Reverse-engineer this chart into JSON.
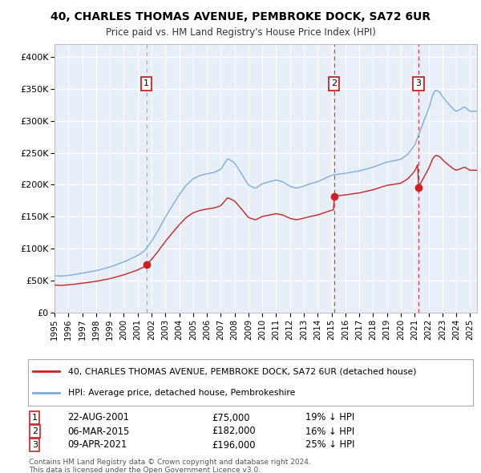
{
  "title": "40, CHARLES THOMAS AVENUE, PEMBROKE DOCK, SA72 6UR",
  "subtitle": "Price paid vs. HM Land Registry's House Price Index (HPI)",
  "legend_line1": "40, CHARLES THOMAS AVENUE, PEMBROKE DOCK, SA72 6UR (detached house)",
  "legend_line2": "HPI: Average price, detached house, Pembrokeshire",
  "footnote1": "Contains HM Land Registry data © Crown copyright and database right 2024.",
  "footnote2": "This data is licensed under the Open Government Licence v3.0.",
  "table_rows": [
    {
      "num": "1",
      "date": "22-AUG-2001",
      "price": "£75,000",
      "info": "19% ↓ HPI"
    },
    {
      "num": "2",
      "date": "06-MAR-2015",
      "price": "£182,000",
      "info": "16% ↓ HPI"
    },
    {
      "num": "3",
      "date": "09-APR-2021",
      "price": "£196,000",
      "info": "25% ↓ HPI"
    }
  ],
  "sale_dates_decimal": [
    2001.64,
    2015.17,
    2021.27
  ],
  "sale_prices": [
    75000,
    182000,
    196000
  ],
  "red_color": "#cc2222",
  "blue_color": "#7aade0",
  "plot_bg": "#e8eef8",
  "grid_color": "#ffffff",
  "ylim": [
    0,
    420000
  ],
  "xlim_start": 1995.0,
  "xlim_end": 2025.5,
  "yticks": [
    0,
    50000,
    100000,
    150000,
    200000,
    250000,
    300000,
    350000,
    400000
  ],
  "ytick_labels": [
    "£0",
    "£50K",
    "£100K",
    "£150K",
    "£200K",
    "£250K",
    "£300K",
    "£350K",
    "£400K"
  ],
  "xtick_years": [
    1995,
    1996,
    1997,
    1998,
    1999,
    2000,
    2001,
    2002,
    2003,
    2004,
    2005,
    2006,
    2007,
    2008,
    2009,
    2010,
    2011,
    2012,
    2013,
    2014,
    2015,
    2016,
    2017,
    2018,
    2019,
    2020,
    2021,
    2022,
    2023,
    2024,
    2025
  ]
}
